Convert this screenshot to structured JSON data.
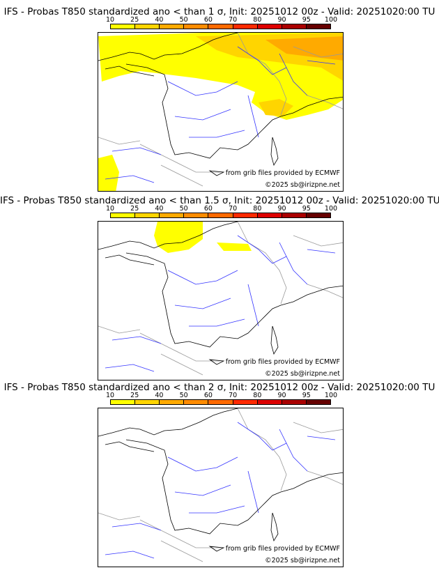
{
  "colorbar": {
    "ticks": [
      "10",
      "25",
      "40",
      "50",
      "60",
      "70",
      "80",
      "90",
      "95",
      "100"
    ],
    "colors": [
      "#ffff00",
      "#ffd500",
      "#ffaa00",
      "#ff8c00",
      "#ff6a00",
      "#ff2a00",
      "#dd0000",
      "#aa0000",
      "#660000"
    ]
  },
  "panels": [
    {
      "title": "IFS - Probas T850  standardized ano < than 1 σ, Init: 20251012 00z - Valid: 20251020:00 TU",
      "coverage": "high"
    },
    {
      "title": "IFS - Probas T850  standardized ano < than 1.5 σ, Init: 20251012 00z - Valid: 20251020:00 TU",
      "coverage": "low"
    },
    {
      "title": "IFS - Probas T850  standardized ano < than 2 σ, Init: 20251012 00z - Valid: 20251020:00 TU",
      "coverage": "none"
    }
  ],
  "credit": {
    "source": "from grib files provided by ECMWF",
    "copyright": "©2025 sb@irizpne.net"
  }
}
